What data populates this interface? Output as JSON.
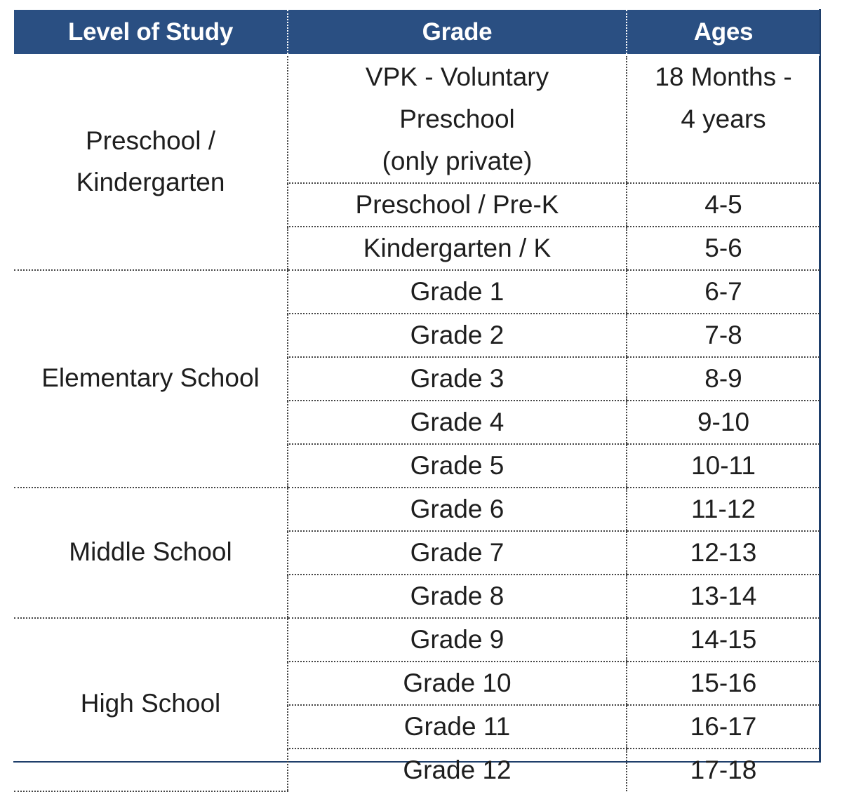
{
  "table": {
    "headers": {
      "level": "Level of Study",
      "grade": "Grade",
      "ages": "Ages"
    },
    "groups": [
      {
        "level_lines": [
          "Preschool /",
          "Kindergarten"
        ],
        "rows": [
          {
            "grade_lines": [
              "VPK - Voluntary",
              "Preschool",
              "(only private)"
            ],
            "age_lines": [
              "18 Months -",
              "4 years"
            ]
          },
          {
            "grade": "Preschool / Pre-K",
            "age": "4-5"
          },
          {
            "grade": "Kindergarten / K",
            "age": "5-6"
          }
        ]
      },
      {
        "level": "Elementary School",
        "rows": [
          {
            "grade": "Grade 1",
            "age": "6-7"
          },
          {
            "grade": "Grade 2",
            "age": "7-8"
          },
          {
            "grade": "Grade 3",
            "age": "8-9"
          },
          {
            "grade": "Grade 4",
            "age": "9-10"
          },
          {
            "grade": "Grade 5",
            "age": "10-11"
          }
        ]
      },
      {
        "level": "Middle School",
        "rows": [
          {
            "grade": "Grade 6",
            "age": "11-12"
          },
          {
            "grade": "Grade 7",
            "age": "12-13"
          },
          {
            "grade": "Grade 8",
            "age": "13-14"
          }
        ]
      },
      {
        "level": "High School",
        "rows": [
          {
            "grade": "Grade 9",
            "age": "14-15"
          },
          {
            "grade": "Grade 10",
            "age": "15-16"
          },
          {
            "grade": "Grade 11",
            "age": "16-17"
          },
          {
            "grade": "Grade 12",
            "age": "17-18"
          }
        ]
      }
    ]
  },
  "colors": {
    "header_bg": "#2a4f82",
    "header_text": "#ffffff",
    "frame": "#1f3f6b",
    "divider": "#444444"
  }
}
